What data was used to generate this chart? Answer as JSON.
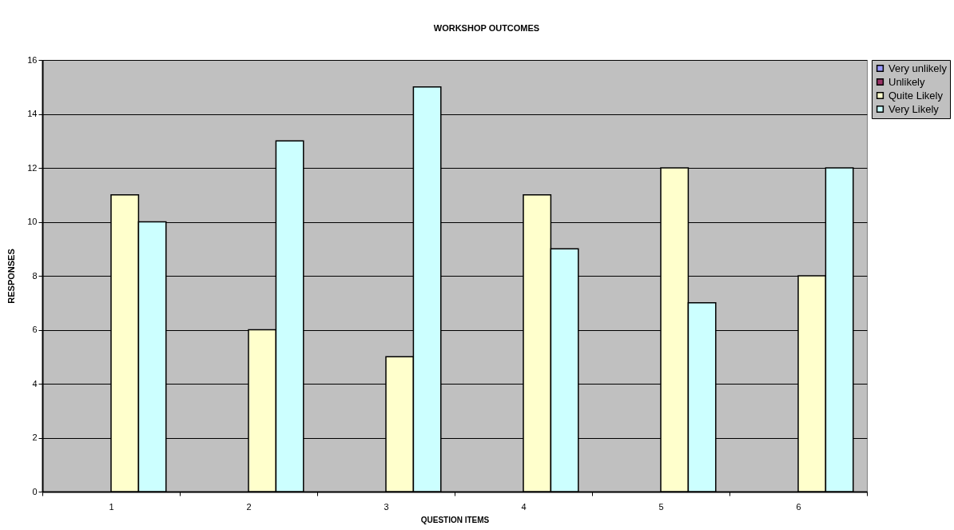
{
  "chart_data": {
    "type": "bar",
    "title": "WORKSHOP OUTCOMES",
    "xlabel": "QUESTION ITEMS",
    "ylabel": "RESPONSES",
    "categories": [
      "1",
      "2",
      "3",
      "4",
      "5",
      "6"
    ],
    "series": [
      {
        "name": "Very unlikely",
        "color": "#9999ff",
        "values": [
          0,
          0,
          0,
          0,
          0,
          0
        ]
      },
      {
        "name": "Unlikely",
        "color": "#993366",
        "values": [
          0,
          0,
          0,
          0,
          0,
          0
        ]
      },
      {
        "name": "Quite Likely",
        "color": "#ffffcc",
        "values": [
          11,
          6,
          5,
          11,
          12,
          8
        ]
      },
      {
        "name": "Very Likely",
        "color": "#ccffff",
        "values": [
          10,
          13,
          15,
          9,
          7,
          12
        ]
      }
    ],
    "ylim": [
      0,
      16
    ],
    "yticks": [
      0,
      2,
      4,
      6,
      8,
      10,
      12,
      14,
      16
    ],
    "grid": "y",
    "legend": "right"
  }
}
